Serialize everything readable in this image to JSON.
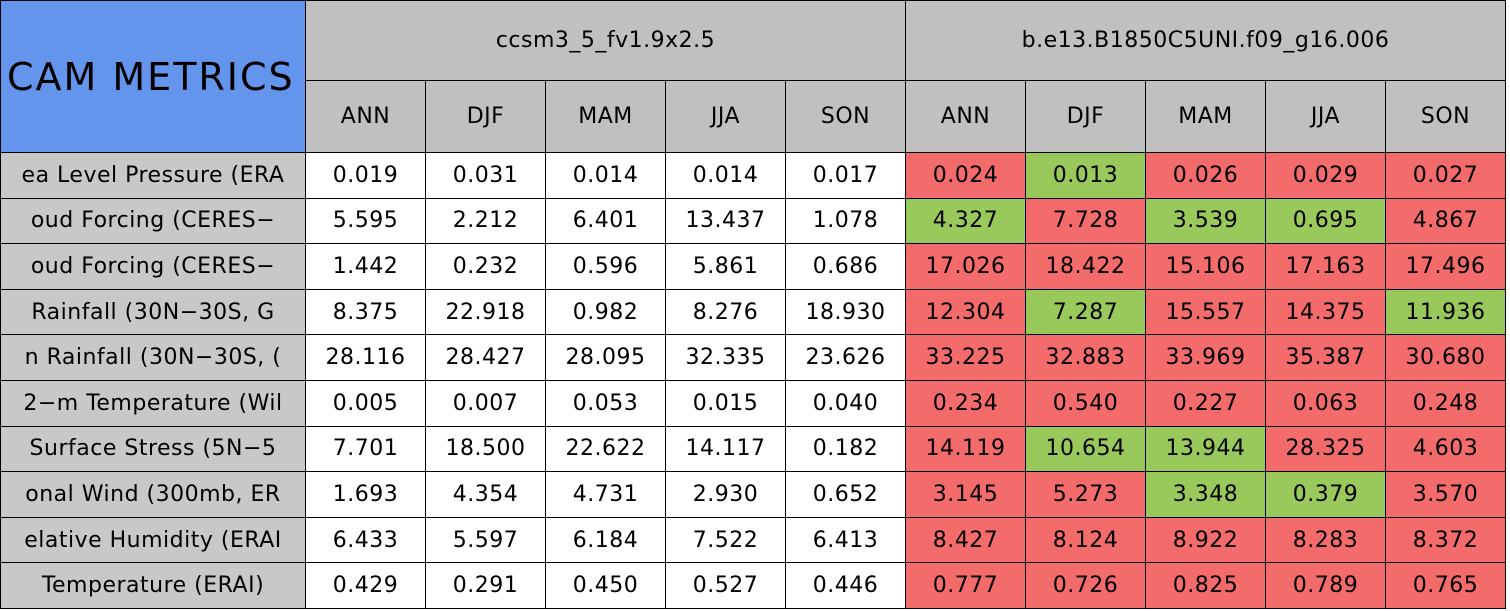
{
  "header": {
    "title": "CAM METRICS",
    "groups": [
      {
        "name": "ccsm3_5_fv1.9x2.5",
        "seasons": [
          "ANN",
          "DJF",
          "MAM",
          "JJA",
          "SON"
        ]
      },
      {
        "name": "b.e13.B1850C5UNI.f09_g16.006",
        "seasons": [
          "ANN",
          "DJF",
          "MAM",
          "JJA",
          "SON"
        ]
      }
    ]
  },
  "palette": {
    "better": "#99c95a",
    "worse": "#f36b6b"
  },
  "rows": [
    {
      "label": "ea Level Pressure (ERA",
      "values": [
        "0.019",
        "0.031",
        "0.014",
        "0.014",
        "0.017",
        "0.024",
        "0.013",
        "0.026",
        "0.029",
        "0.027"
      ],
      "marks": [
        "worse",
        "better",
        "worse",
        "worse",
        "worse"
      ]
    },
    {
      "label": "oud Forcing (CERES−",
      "values": [
        "5.595",
        "2.212",
        "6.401",
        "13.437",
        "1.078",
        "4.327",
        "7.728",
        "3.539",
        "0.695",
        "4.867"
      ],
      "marks": [
        "better",
        "worse",
        "better",
        "better",
        "worse"
      ]
    },
    {
      "label": "oud Forcing (CERES−",
      "values": [
        "1.442",
        "0.232",
        "0.596",
        "5.861",
        "0.686",
        "17.026",
        "18.422",
        "15.106",
        "17.163",
        "17.496"
      ],
      "marks": [
        "worse",
        "worse",
        "worse",
        "worse",
        "worse"
      ]
    },
    {
      "label": "Rainfall (30N−30S, G",
      "values": [
        "8.375",
        "22.918",
        "0.982",
        "8.276",
        "18.930",
        "12.304",
        "7.287",
        "15.557",
        "14.375",
        "11.936"
      ],
      "marks": [
        "worse",
        "better",
        "worse",
        "worse",
        "better"
      ]
    },
    {
      "label": "n Rainfall (30N−30S, (",
      "values": [
        "28.116",
        "28.427",
        "28.095",
        "32.335",
        "23.626",
        "33.225",
        "32.883",
        "33.969",
        "35.387",
        "30.680"
      ],
      "marks": [
        "worse",
        "worse",
        "worse",
        "worse",
        "worse"
      ]
    },
    {
      "label": "2−m Temperature (Wil",
      "values": [
        "0.005",
        "0.007",
        "0.053",
        "0.015",
        "0.040",
        "0.234",
        "0.540",
        "0.227",
        "0.063",
        "0.248"
      ],
      "marks": [
        "worse",
        "worse",
        "worse",
        "worse",
        "worse"
      ]
    },
    {
      "label": "Surface Stress (5N−5",
      "values": [
        "7.701",
        "18.500",
        "22.622",
        "14.117",
        "0.182",
        "14.119",
        "10.654",
        "13.944",
        "28.325",
        "4.603"
      ],
      "marks": [
        "worse",
        "better",
        "better",
        "worse",
        "worse"
      ]
    },
    {
      "label": "onal Wind (300mb, ER",
      "values": [
        "1.693",
        "4.354",
        "4.731",
        "2.930",
        "0.652",
        "3.145",
        "5.273",
        "3.348",
        "0.379",
        "3.570"
      ],
      "marks": [
        "worse",
        "worse",
        "better",
        "better",
        "worse"
      ]
    },
    {
      "label": "elative Humidity (ERAI",
      "values": [
        "6.433",
        "5.597",
        "6.184",
        "7.522",
        "6.413",
        "8.427",
        "8.124",
        "8.922",
        "8.283",
        "8.372"
      ],
      "marks": [
        "worse",
        "worse",
        "worse",
        "worse",
        "worse"
      ]
    },
    {
      "label": "Temperature (ERAI)",
      "values": [
        "0.429",
        "0.291",
        "0.450",
        "0.527",
        "0.446",
        "0.777",
        "0.726",
        "0.825",
        "0.789",
        "0.765"
      ],
      "marks": [
        "worse",
        "worse",
        "worse",
        "worse",
        "worse"
      ]
    }
  ]
}
